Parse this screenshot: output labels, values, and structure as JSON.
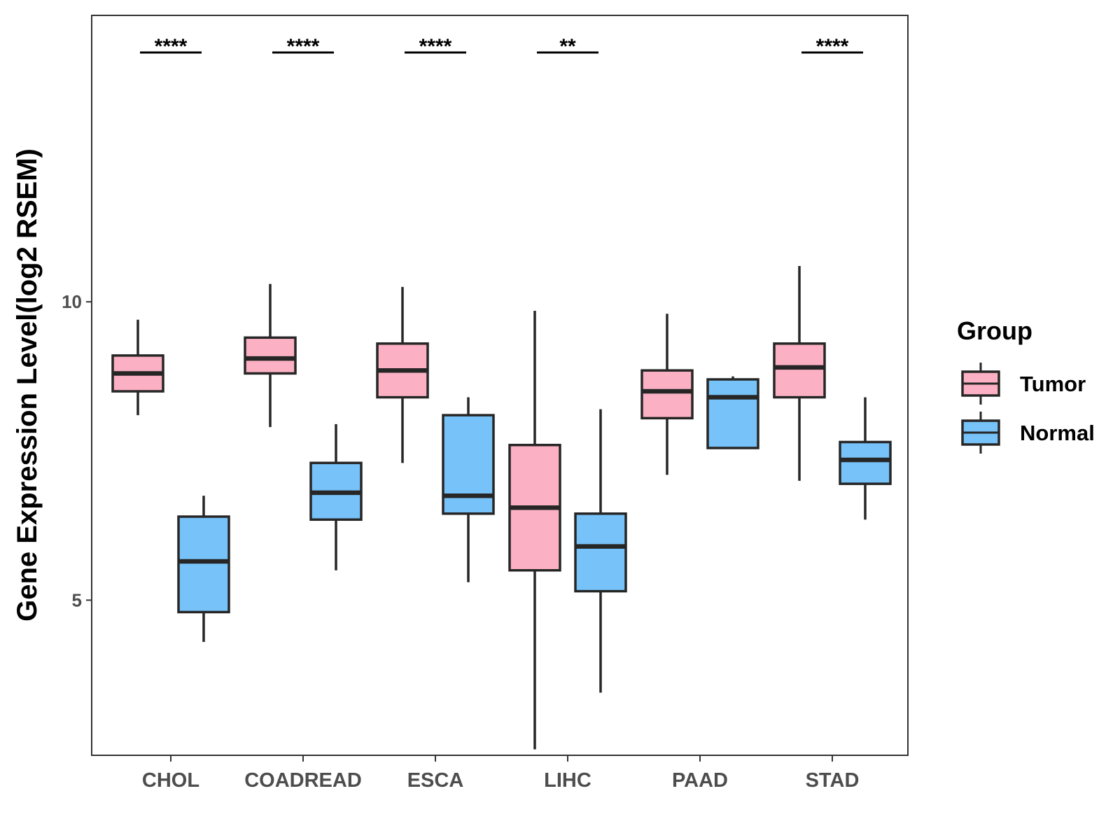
{
  "chart_data": {
    "type": "box",
    "title": "",
    "xlabel": "",
    "ylabel": "Gene Expression Level(log2 RSEM)",
    "ylim": [
      2.4,
      14.8
    ],
    "yticks": [
      5,
      10
    ],
    "grid": false,
    "categories": [
      "CHOL",
      "COADREAD",
      "ESCA",
      "LIHC",
      "PAAD",
      "STAD"
    ],
    "legend": {
      "title": "Group",
      "placement": "right",
      "entries": [
        {
          "name": "Tumor",
          "color": "#fbb1c3"
        },
        {
          "name": "Normal",
          "color": "#77c2f8"
        }
      ]
    },
    "series": [
      {
        "name": "Tumor",
        "color": "#fbb1c3",
        "boxes": [
          {
            "category": "CHOL",
            "min": 8.1,
            "q1": 8.5,
            "median": 8.8,
            "q3": 9.1,
            "max": 9.7
          },
          {
            "category": "COADREAD",
            "min": 7.9,
            "q1": 8.8,
            "median": 9.05,
            "q3": 9.4,
            "max": 10.3
          },
          {
            "category": "ESCA",
            "min": 7.3,
            "q1": 8.4,
            "median": 8.85,
            "q3": 9.3,
            "max": 10.25
          },
          {
            "category": "LIHC",
            "min": 2.5,
            "q1": 5.5,
            "median": 6.55,
            "q3": 7.6,
            "max": 9.85
          },
          {
            "category": "PAAD",
            "min": 7.1,
            "q1": 8.05,
            "median": 8.5,
            "q3": 8.85,
            "max": 9.8
          },
          {
            "category": "STAD",
            "min": 7.0,
            "q1": 8.4,
            "median": 8.9,
            "q3": 9.3,
            "max": 10.6
          }
        ]
      },
      {
        "name": "Normal",
        "color": "#77c2f8",
        "boxes": [
          {
            "category": "CHOL",
            "min": 4.3,
            "q1": 4.8,
            "median": 5.65,
            "q3": 6.4,
            "max": 6.75
          },
          {
            "category": "COADREAD",
            "min": 5.5,
            "q1": 6.35,
            "median": 6.8,
            "q3": 7.3,
            "max": 7.95
          },
          {
            "category": "ESCA",
            "min": 5.3,
            "q1": 6.45,
            "median": 6.75,
            "q3": 8.1,
            "max": 8.4
          },
          {
            "category": "LIHC",
            "min": 3.45,
            "q1": 5.15,
            "median": 5.9,
            "q3": 6.45,
            "max": 8.2
          },
          {
            "category": "PAAD",
            "min": 7.55,
            "q1": 7.55,
            "median": 8.4,
            "q3": 8.7,
            "max": 8.75
          },
          {
            "category": "STAD",
            "min": 6.35,
            "q1": 6.95,
            "median": 7.35,
            "q3": 7.65,
            "max": 8.4
          }
        ]
      }
    ],
    "annotations": [
      {
        "category": "CHOL",
        "label": "****"
      },
      {
        "category": "COADREAD",
        "label": "****"
      },
      {
        "category": "ESCA",
        "label": "****"
      },
      {
        "category": "LIHC",
        "label": "**"
      },
      {
        "category": "STAD",
        "label": "****"
      }
    ]
  }
}
